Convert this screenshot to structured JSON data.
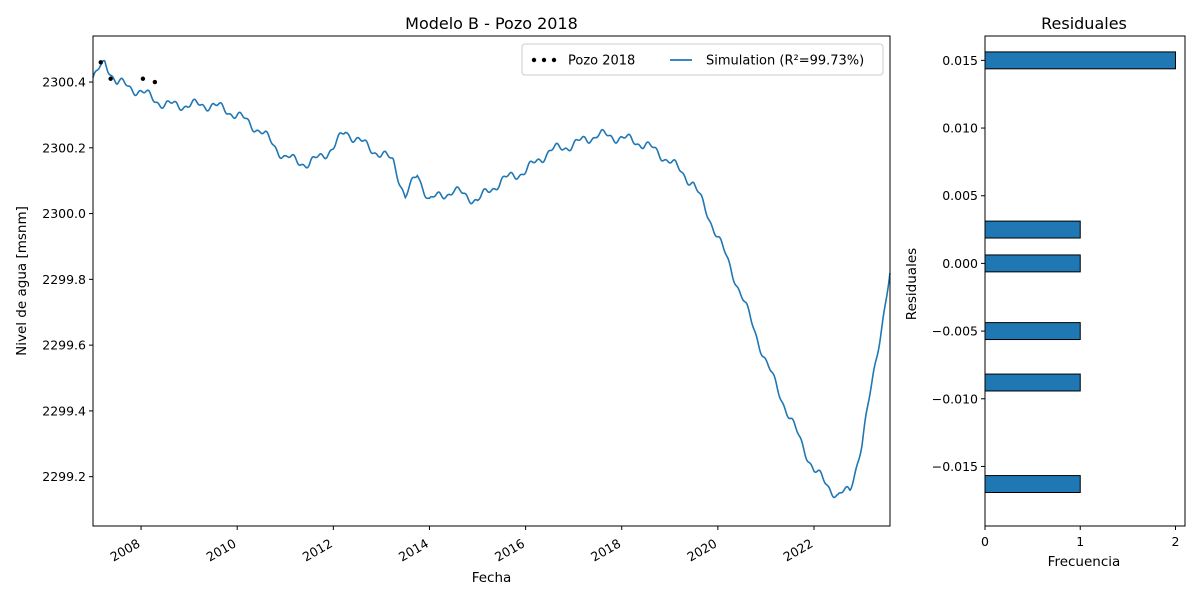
{
  "chart_data": [
    {
      "type": "line",
      "title": "Modelo B - Pozo 2018",
      "xlabel": "Fecha",
      "ylabel": "Nivel de agua [msnm]",
      "xlim": [
        "2007-01-01",
        "2023-08-01"
      ],
      "ylim": [
        2299.05,
        2300.54
      ],
      "x_ticks": [
        2008,
        2010,
        2012,
        2014,
        2016,
        2018,
        2020,
        2022
      ],
      "y_ticks": [
        2299.2,
        2299.4,
        2299.6,
        2299.8,
        2300.0,
        2300.2,
        2300.4
      ],
      "y_tick_labels": [
        "2299.2",
        "2299.4",
        "2299.6",
        "2299.8",
        "2300.0",
        "2300.2",
        "2300.4"
      ],
      "legend": {
        "placement": "top-right",
        "observed_label": "Pozo 2018",
        "sim_label": "Simulation (R²=99.73%)"
      },
      "observed": {
        "name": "Pozo 2018",
        "color": "#000000",
        "points": [
          {
            "x": "2007-03-01",
            "y": 2300.46
          },
          {
            "x": "2007-05-15",
            "y": 2300.41
          },
          {
            "x": "2008-01-15",
            "y": 2300.41
          },
          {
            "x": "2008-04-15",
            "y": 2300.4
          }
        ]
      },
      "series": [
        {
          "name": "Simulation",
          "color": "#1f77b4",
          "points": [
            {
              "x": "2007-01-01",
              "y": 2300.41
            },
            {
              "x": "2007-04-01",
              "y": 2300.46
            },
            {
              "x": "2007-07-01",
              "y": 2300.4
            },
            {
              "x": "2008-01-01",
              "y": 2300.37
            },
            {
              "x": "2008-07-01",
              "y": 2300.33
            },
            {
              "x": "2009-01-01",
              "y": 2300.33
            },
            {
              "x": "2009-07-01",
              "y": 2300.33
            },
            {
              "x": "2010-01-01",
              "y": 2300.3
            },
            {
              "x": "2010-07-01",
              "y": 2300.25
            },
            {
              "x": "2011-01-01",
              "y": 2300.17
            },
            {
              "x": "2011-07-01",
              "y": 2300.15
            },
            {
              "x": "2012-01-01",
              "y": 2300.2
            },
            {
              "x": "2012-04-01",
              "y": 2300.25
            },
            {
              "x": "2012-10-01",
              "y": 2300.2
            },
            {
              "x": "2013-04-01",
              "y": 2300.16
            },
            {
              "x": "2013-07-01",
              "y": 2300.05
            },
            {
              "x": "2013-10-01",
              "y": 2300.12
            },
            {
              "x": "2014-01-01",
              "y": 2300.04
            },
            {
              "x": "2014-07-01",
              "y": 2300.07
            },
            {
              "x": "2015-01-01",
              "y": 2300.04
            },
            {
              "x": "2015-07-01",
              "y": 2300.1
            },
            {
              "x": "2016-01-01",
              "y": 2300.13
            },
            {
              "x": "2016-07-01",
              "y": 2300.19
            },
            {
              "x": "2017-01-01",
              "y": 2300.21
            },
            {
              "x": "2017-07-01",
              "y": 2300.24
            },
            {
              "x": "2018-01-01",
              "y": 2300.23
            },
            {
              "x": "2018-07-01",
              "y": 2300.21
            },
            {
              "x": "2019-01-01",
              "y": 2300.16
            },
            {
              "x": "2019-07-01",
              "y": 2300.09
            },
            {
              "x": "2020-01-01",
              "y": 2299.93
            },
            {
              "x": "2020-07-01",
              "y": 2299.75
            },
            {
              "x": "2021-01-01",
              "y": 2299.55
            },
            {
              "x": "2021-07-01",
              "y": 2299.38
            },
            {
              "x": "2022-01-01",
              "y": 2299.22
            },
            {
              "x": "2022-07-01",
              "y": 2299.14
            },
            {
              "x": "2022-10-01",
              "y": 2299.16
            },
            {
              "x": "2023-01-01",
              "y": 2299.3
            },
            {
              "x": "2023-04-01",
              "y": 2299.52
            },
            {
              "x": "2023-08-01",
              "y": 2299.81
            }
          ]
        }
      ]
    },
    {
      "type": "bar",
      "orientation": "horizontal",
      "title": "Residuales",
      "xlabel": "Frecuencia",
      "ylabel": "Residuales",
      "xlim": [
        0,
        2.1
      ],
      "ylim": [
        -0.0194,
        0.0168
      ],
      "x_ticks": [
        0,
        1,
        2
      ],
      "y_ticks": [
        -0.015,
        -0.01,
        -0.005,
        0.0,
        0.005,
        0.01,
        0.015
      ],
      "y_tick_labels": [
        "−0.015",
        "−0.010",
        "−0.005",
        "0.000",
        "0.005",
        "0.010",
        "0.015"
      ],
      "color": "#1f77b4",
      "bars": [
        {
          "residual": 0.015,
          "count": 2
        },
        {
          "residual": 0.0025,
          "count": 1
        },
        {
          "residual": 0.0,
          "count": 1
        },
        {
          "residual": -0.005,
          "count": 1
        },
        {
          "residual": -0.0088,
          "count": 1
        },
        {
          "residual": -0.0163,
          "count": 1
        }
      ],
      "bar_height": 0.00125
    }
  ]
}
